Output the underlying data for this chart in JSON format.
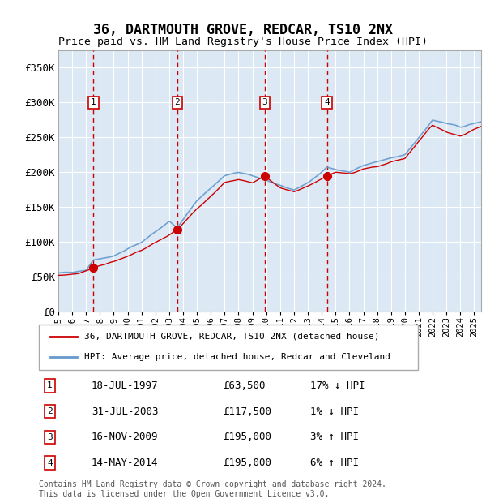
{
  "title": "36, DARTMOUTH GROVE, REDCAR, TS10 2NX",
  "subtitle": "Price paid vs. HM Land Registry's House Price Index (HPI)",
  "ylabel": "",
  "ylim": [
    0,
    375000
  ],
  "yticks": [
    0,
    50000,
    100000,
    150000,
    200000,
    250000,
    300000,
    350000
  ],
  "ytick_labels": [
    "£0",
    "£50K",
    "£100K",
    "£150K",
    "£200K",
    "£250K",
    "£300K",
    "£350K"
  ],
  "background_color": "#ffffff",
  "plot_bg_color": "#dce9f5",
  "grid_color": "#ffffff",
  "sale_dates": [
    1997.54,
    2003.58,
    2009.88,
    2014.37
  ],
  "sale_prices": [
    63500,
    117500,
    195000,
    195000
  ],
  "sale_labels": [
    "1",
    "2",
    "3",
    "4"
  ],
  "hpi_line_color": "#6699cc",
  "sale_line_color": "#cc0000",
  "sale_dot_color": "#cc0000",
  "vline_color": "#cc0000",
  "vline_shading_color": "#dce9f5",
  "legend_box_color": "#ffffff",
  "legend_border_color": "#aaaaaa",
  "sale_label_entries": [
    {
      "num": "1",
      "date": "18-JUL-1997",
      "price": "£63,500",
      "hpi_text": "17% ↓ HPI"
    },
    {
      "num": "2",
      "date": "31-JUL-2003",
      "price": "£117,500",
      "hpi_text": "1% ↓ HPI"
    },
    {
      "num": "3",
      "date": "16-NOV-2009",
      "price": "£195,000",
      "hpi_text": "3% ↑ HPI"
    },
    {
      "num": "4",
      "date": "14-MAY-2014",
      "price": "£195,000",
      "hpi_text": "6% ↑ HPI"
    }
  ],
  "footnote": "Contains HM Land Registry data © Crown copyright and database right 2024.\nThis data is licensed under the Open Government Licence v3.0.",
  "legend_line1": "36, DARTMOUTH GROVE, REDCAR, TS10 2NX (detached house)",
  "legend_line2": "HPI: Average price, detached house, Redcar and Cleveland",
  "xmin": 1995.0,
  "xmax": 2025.5
}
